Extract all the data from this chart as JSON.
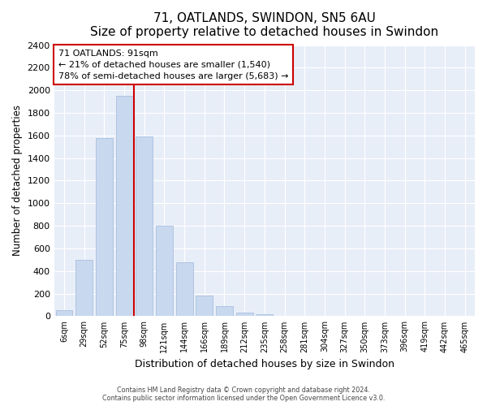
{
  "title": "71, OATLANDS, SWINDON, SN5 6AU",
  "subtitle": "Size of property relative to detached houses in Swindon",
  "xlabel": "Distribution of detached houses by size in Swindon",
  "ylabel": "Number of detached properties",
  "bar_labels": [
    "6sqm",
    "29sqm",
    "52sqm",
    "75sqm",
    "98sqm",
    "121sqm",
    "144sqm",
    "166sqm",
    "189sqm",
    "212sqm",
    "235sqm",
    "258sqm",
    "281sqm",
    "304sqm",
    "327sqm",
    "350sqm",
    "373sqm",
    "396sqm",
    "419sqm",
    "442sqm",
    "465sqm"
  ],
  "bar_values": [
    55,
    500,
    1580,
    1950,
    1590,
    800,
    480,
    185,
    90,
    35,
    20,
    0,
    0,
    0,
    0,
    0,
    0,
    0,
    0,
    0,
    0
  ],
  "bar_color": "#c8d8ee",
  "bar_edge_color": "#a8c0e0",
  "property_line_x": 3.5,
  "property_line_color": "#cc0000",
  "annotation_title": "71 OATLANDS: 91sqm",
  "annotation_line1": "← 21% of detached houses are smaller (1,540)",
  "annotation_line2": "78% of semi-detached houses are larger (5,683) →",
  "annotation_box_color": "white",
  "annotation_box_edge": "#cc0000",
  "ylim": [
    0,
    2400
  ],
  "yticks": [
    0,
    200,
    400,
    600,
    800,
    1000,
    1200,
    1400,
    1600,
    1800,
    2000,
    2200,
    2400
  ],
  "footer_line1": "Contains HM Land Registry data © Crown copyright and database right 2024.",
  "footer_line2": "Contains public sector information licensed under the Open Government Licence v3.0.",
  "bg_color": "#ffffff",
  "plot_bg_color": "#e8eef8",
  "grid_color": "#ffffff"
}
